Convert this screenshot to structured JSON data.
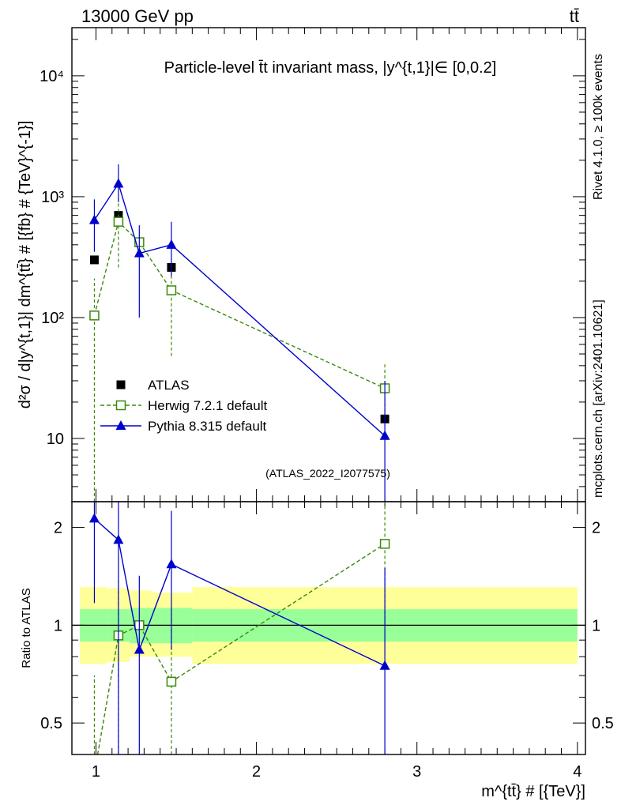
{
  "chart_data": {
    "type": "scatter",
    "header_left": "13000 GeV pp",
    "header_right": "tt̄",
    "title": "Particle-level t̄t invariant mass, |y^{t,1}|∈ [0,0.2]",
    "xlabel": "m^{tt̄} # [{TeV}]",
    "ylabel": "d²σ / d|y^{t,1}| dm^{tt̄} # [{fb} # {TeV}^{-1}]",
    "ratio_ylabel": "Ratio to ATLAS",
    "watermark": "(ATLAS_2022_I2077575)",
    "side_label_top": "Rivet 4.1.0, ≥ 100k events",
    "side_label_bottom": "mcplots.cern.ch [arXiv:2401.10621]",
    "xlim": [
      0.85,
      4.05
    ],
    "ylim": [
      3,
      25000
    ],
    "ratio_ylim": [
      0.4,
      2.4
    ],
    "x_ticks": [
      "1",
      "2",
      "3",
      "4"
    ],
    "y_ticks": [
      "10",
      "10²",
      "10³",
      "10⁴"
    ],
    "ratio_ticks": [
      "0.5",
      "1",
      "2"
    ],
    "bins": [
      {
        "lo": 0.9,
        "hi": 1.07
      },
      {
        "lo": 1.07,
        "hi": 1.21
      },
      {
        "lo": 1.21,
        "hi": 1.35
      },
      {
        "lo": 1.35,
        "hi": 1.6
      },
      {
        "lo": 1.6,
        "hi": 4.0
      }
    ],
    "ratio_bands": {
      "inner": [
        [
          0.89,
          1.12
        ],
        [
          0.89,
          1.12
        ],
        [
          0.88,
          1.13
        ],
        [
          0.88,
          1.13
        ],
        [
          0.89,
          1.12
        ]
      ],
      "outer": [
        [
          0.76,
          1.31
        ],
        [
          0.77,
          1.3
        ],
        [
          0.8,
          1.28
        ],
        [
          0.8,
          1.26
        ],
        [
          0.76,
          1.31
        ]
      ]
    },
    "series": [
      {
        "name": "ATLAS",
        "marker": "square-filled",
        "color": "#000000",
        "x": [
          0.99,
          1.14,
          1.27,
          1.47,
          2.8
        ],
        "y": [
          300,
          700,
          420,
          260,
          14.5
        ]
      },
      {
        "name": "Herwig 7.2.1 default",
        "marker": "square-open",
        "color": "#3a8a0a",
        "dashed": true,
        "x": [
          0.99,
          1.14,
          1.27,
          1.47,
          2.8
        ],
        "y": [
          104,
          620,
          420,
          168,
          26
        ],
        "y_lo": [
          1,
          260,
          420,
          48,
          15
        ],
        "y_hi": [
          210,
          980,
          420,
          290,
          41
        ],
        "ratio": [
          0.35,
          0.93,
          1.0,
          0.67,
          1.78
        ],
        "ratio_lo": [
          0.2,
          0.37,
          1.0,
          0.2,
          1.04
        ],
        "ratio_hi": [
          0.7,
          1.4,
          1.0,
          1.12,
          2.8
        ]
      },
      {
        "name": "Pythia 8.315 default",
        "marker": "triangle-filled",
        "color": "#0000cc",
        "dashed": false,
        "x": [
          0.99,
          1.14,
          1.27,
          1.47,
          2.8
        ],
        "y": [
          640,
          1280,
          340,
          400,
          10.5
        ],
        "y_lo": [
          350,
          900,
          100,
          220,
          1
        ],
        "y_hi": [
          950,
          1850,
          580,
          620,
          30
        ],
        "ratio": [
          2.13,
          1.83,
          0.84,
          1.54,
          0.75
        ],
        "ratio_lo": [
          1.17,
          0.3,
          0.2,
          0.84,
          0.1
        ],
        "ratio_hi": [
          3.0,
          3.0,
          1.42,
          2.25,
          1.5
        ]
      }
    ]
  }
}
